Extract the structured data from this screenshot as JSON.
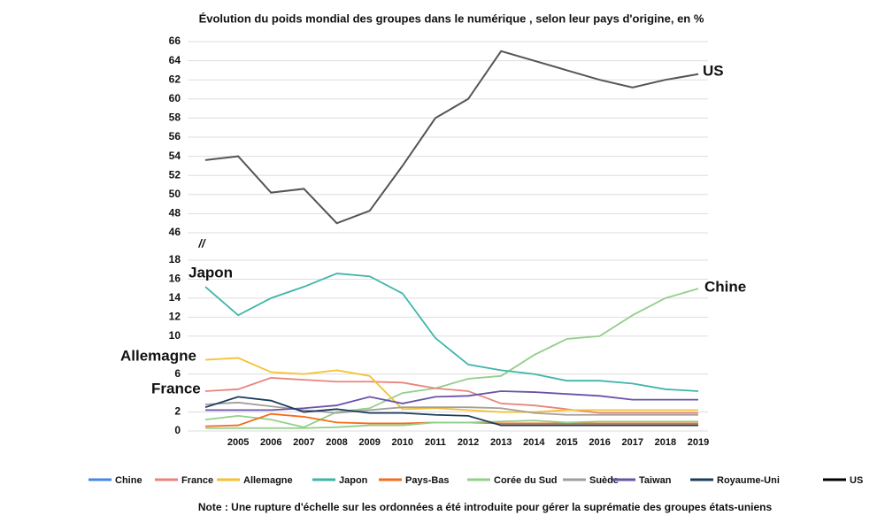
{
  "chart_data": {
    "type": "line",
    "title": "Évolution du poids mondial des groupes dans le numérique , selon leur pays d'origine, en %",
    "categories": [
      null,
      "2005",
      "2006",
      "2007",
      "2008",
      "2009",
      "2010",
      "2011",
      "2012",
      "2013",
      "2014",
      "2015",
      "2016",
      "2017",
      "2018",
      "2019"
    ],
    "ylim": [
      0,
      18
    ],
    "yticks": [
      0,
      2,
      6,
      10,
      12,
      14,
      16,
      18
    ],
    "y2lim": [
      46,
      66
    ],
    "y2ticks": [
      46,
      48,
      50,
      52,
      54,
      56,
      58,
      60,
      62,
      64,
      66
    ],
    "axis_break": "//",
    "series": [
      {
        "name": "Chine",
        "color": "#4a86e8",
        "line_color": "#93cf8b",
        "values": [
          1.2,
          1.6,
          1.2,
          0.4,
          2.0,
          2.4,
          4.0,
          4.5,
          5.5,
          5.8,
          8.0,
          9.7,
          10.0,
          12.2,
          14.0,
          15.0
        ]
      },
      {
        "name": "France",
        "color": "#e8847a",
        "values": [
          4.2,
          4.4,
          5.6,
          5.4,
          5.2,
          5.2,
          5.1,
          4.5,
          4.2,
          2.9,
          2.7,
          2.3,
          1.9,
          1.9,
          1.9,
          1.9
        ]
      },
      {
        "name": "Allemagne",
        "color": "#f4c232",
        "values": [
          7.5,
          7.7,
          6.2,
          6.0,
          6.4,
          5.8,
          2.3,
          2.4,
          2.2,
          2.0,
          2.0,
          2.2,
          2.2,
          2.2,
          2.2,
          2.2
        ]
      },
      {
        "name": "Japon",
        "color": "#3fb5a8",
        "values": [
          15.2,
          12.2,
          14.0,
          15.2,
          16.6,
          16.3,
          14.5,
          9.8,
          7.0,
          6.4,
          6.0,
          5.3,
          5.3,
          5.0,
          4.4,
          4.2
        ]
      },
      {
        "name": "Pays-Bas",
        "color": "#f46d1b",
        "values": [
          0.5,
          0.6,
          1.8,
          1.5,
          0.9,
          0.8,
          0.8,
          0.9,
          0.9,
          0.8,
          0.8,
          0.8,
          0.8,
          0.8,
          0.8,
          0.8
        ]
      },
      {
        "name": "Corée du Sud",
        "color": "#93cf8b",
        "values": [
          0.3,
          0.3,
          0.3,
          0.3,
          0.4,
          0.6,
          0.6,
          0.9,
          0.9,
          1.0,
          1.1,
          0.9,
          1.0,
          1.0,
          1.0,
          1.0
        ]
      },
      {
        "name": "Suède",
        "color": "#a39e9c",
        "values": [
          2.8,
          3.0,
          2.6,
          2.2,
          1.9,
          2.2,
          2.5,
          2.5,
          2.5,
          2.4,
          1.9,
          1.7,
          1.7,
          1.7,
          1.7,
          1.7
        ]
      },
      {
        "name": "Taiwan",
        "color": "#6a52a8",
        "values": [
          2.2,
          2.2,
          2.2,
          2.4,
          2.7,
          3.6,
          2.9,
          3.6,
          3.7,
          4.2,
          4.1,
          3.9,
          3.7,
          3.3,
          3.3,
          3.3
        ]
      },
      {
        "name": "Royaume-Uni",
        "color": "#1c3c5c",
        "values": [
          2.5,
          3.6,
          3.2,
          2.0,
          2.3,
          1.9,
          1.9,
          1.7,
          1.6,
          0.6,
          0.6,
          0.6,
          0.6,
          0.6,
          0.6,
          0.6
        ]
      },
      {
        "name": "US",
        "color": "#000000",
        "line_color": "#555555",
        "axis": "y2",
        "values": [
          53.6,
          54.0,
          50.2,
          50.6,
          47.0,
          48.3,
          53.0,
          58.0,
          60.0,
          65.0,
          64.0,
          63.0,
          62.0,
          61.2,
          62.0,
          62.6
        ]
      }
    ],
    "annotations": [
      "US",
      "Japon",
      "Allemagne",
      "France",
      "Chine"
    ],
    "note": "Note : Une rupture d'échelle sur les ordonnées a été introduite pour gérer la suprématie des groupes états-uniens",
    "grid": true
  }
}
